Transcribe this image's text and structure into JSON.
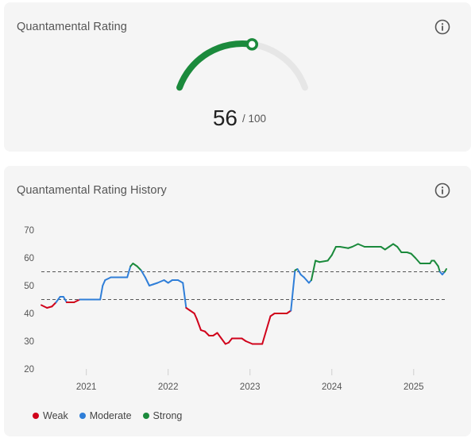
{
  "rating_card": {
    "title": "Quantamental Rating",
    "score": "56",
    "max": "/ 100",
    "score_value": 56,
    "score_max": 100,
    "info_icon": "info-icon"
  },
  "history_card": {
    "title": "Quantamental Rating History",
    "info_icon": "info-icon",
    "legend": [
      {
        "label": "Weak",
        "color": "#d0021b"
      },
      {
        "label": "Moderate",
        "color": "#2f7ed8"
      },
      {
        "label": "Strong",
        "color": "#1b8a3c"
      }
    ]
  },
  "colors": {
    "strong": "#1b8a3c",
    "moderate": "#2f7ed8",
    "weak": "#d0021b",
    "gauge_track": "#e6e6e6",
    "threshold_line": "#555555"
  },
  "chart_data": {
    "type": "line",
    "title": "",
    "xlabel": "",
    "ylabel": "",
    "xlim": [
      2020.45,
      2025.4
    ],
    "ylim": [
      20,
      70
    ],
    "yticks": [
      20,
      30,
      40,
      50,
      60,
      70
    ],
    "xticks": [
      2021,
      2022,
      2023,
      2024,
      2025
    ],
    "xtick_labels": [
      "2021",
      "2022",
      "2023",
      "2024",
      "2025"
    ],
    "grid": false,
    "legend_placement": "bottom-left",
    "thresholds": [
      45,
      55
    ],
    "series": [
      {
        "name": "Quantamental Rating",
        "points": [
          [
            2020.45,
            43
          ],
          [
            2020.52,
            42
          ],
          [
            2020.58,
            42.5
          ],
          [
            2020.63,
            44
          ],
          [
            2020.68,
            46
          ],
          [
            2020.72,
            46
          ],
          [
            2020.76,
            44
          ],
          [
            2020.85,
            44
          ],
          [
            2020.92,
            45
          ],
          [
            2021.1,
            45
          ],
          [
            2021.17,
            45
          ],
          [
            2021.2,
            50
          ],
          [
            2021.23,
            52
          ],
          [
            2021.3,
            53
          ],
          [
            2021.45,
            53
          ],
          [
            2021.5,
            53
          ],
          [
            2021.54,
            57
          ],
          [
            2021.57,
            58
          ],
          [
            2021.62,
            57
          ],
          [
            2021.67,
            55.5
          ],
          [
            2021.72,
            53
          ],
          [
            2021.77,
            50
          ],
          [
            2021.82,
            50.5
          ],
          [
            2021.87,
            51
          ],
          [
            2021.95,
            52
          ],
          [
            2022.0,
            51
          ],
          [
            2022.05,
            52
          ],
          [
            2022.12,
            52
          ],
          [
            2022.18,
            51
          ],
          [
            2022.22,
            42
          ],
          [
            2022.27,
            41
          ],
          [
            2022.32,
            40
          ],
          [
            2022.35,
            38
          ],
          [
            2022.4,
            34
          ],
          [
            2022.45,
            33.5
          ],
          [
            2022.5,
            32
          ],
          [
            2022.55,
            32
          ],
          [
            2022.6,
            33
          ],
          [
            2022.65,
            31
          ],
          [
            2022.7,
            29
          ],
          [
            2022.74,
            29.5
          ],
          [
            2022.78,
            31
          ],
          [
            2022.9,
            31
          ],
          [
            2022.95,
            30
          ],
          [
            2023.03,
            29
          ],
          [
            2023.15,
            29
          ],
          [
            2023.2,
            34
          ],
          [
            2023.25,
            39
          ],
          [
            2023.3,
            40
          ],
          [
            2023.45,
            40
          ],
          [
            2023.5,
            41
          ],
          [
            2023.55,
            55.5
          ],
          [
            2023.58,
            56
          ],
          [
            2023.62,
            54
          ],
          [
            2023.66,
            53
          ],
          [
            2023.72,
            51
          ],
          [
            2023.75,
            52
          ],
          [
            2023.8,
            59
          ],
          [
            2023.85,
            58.5
          ],
          [
            2023.95,
            59
          ],
          [
            2024.0,
            61
          ],
          [
            2024.05,
            64
          ],
          [
            2024.1,
            64
          ],
          [
            2024.2,
            63.5
          ],
          [
            2024.25,
            64
          ],
          [
            2024.32,
            65
          ],
          [
            2024.4,
            64
          ],
          [
            2024.5,
            64
          ],
          [
            2024.6,
            64
          ],
          [
            2024.65,
            63
          ],
          [
            2024.7,
            64
          ],
          [
            2024.75,
            65
          ],
          [
            2024.8,
            64
          ],
          [
            2024.85,
            62
          ],
          [
            2024.92,
            62
          ],
          [
            2024.97,
            61.5
          ],
          [
            2025.02,
            60
          ],
          [
            2025.08,
            58
          ],
          [
            2025.2,
            58
          ],
          [
            2025.22,
            59
          ],
          [
            2025.25,
            59
          ],
          [
            2025.3,
            57
          ],
          [
            2025.32,
            55
          ],
          [
            2025.35,
            54
          ],
          [
            2025.38,
            55
          ],
          [
            2025.4,
            56
          ]
        ]
      }
    ]
  }
}
